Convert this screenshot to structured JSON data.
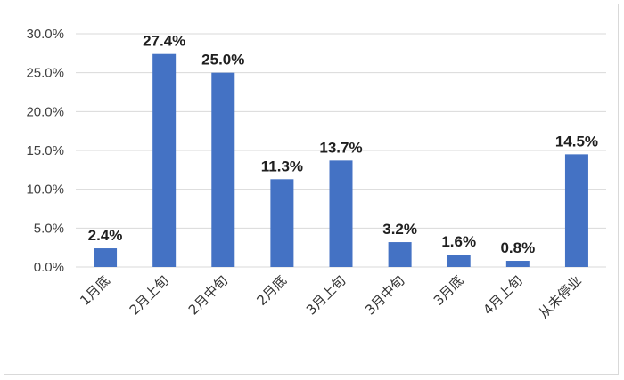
{
  "chart_data": {
    "type": "bar",
    "title": "",
    "xlabel": "",
    "ylabel": "",
    "categories": [
      "1月底",
      "2月上旬",
      "2月中旬",
      "2月底",
      "3月上旬",
      "3月中旬",
      "3月底",
      "4月上旬",
      "从未停业"
    ],
    "values": [
      2.4,
      27.4,
      25.0,
      11.3,
      13.7,
      3.2,
      1.6,
      0.8,
      14.5
    ],
    "value_labels": [
      "2.4%",
      "27.4%",
      "25.0%",
      "11.3%",
      "13.7%",
      "3.2%",
      "1.6%",
      "0.8%",
      "14.5%"
    ],
    "ylim": [
      0,
      30
    ],
    "y_ticks": [
      0,
      5,
      10,
      15,
      20,
      25,
      30
    ],
    "y_tick_labels": [
      "0.0%",
      "5.0%",
      "10.0%",
      "15.0%",
      "20.0%",
      "25.0%",
      "30.0%"
    ],
    "grid": true,
    "legend": "none",
    "bar_color": "#4472C4",
    "grid_color": "#d9d9d9"
  }
}
